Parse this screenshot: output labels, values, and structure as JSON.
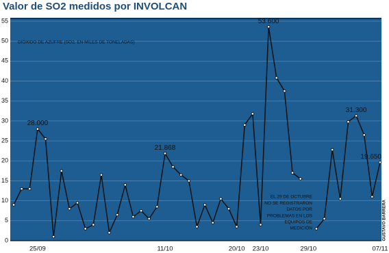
{
  "chart_data": {
    "type": "line",
    "title": "Valor de SO2 medidos por INVOLCAN",
    "subtitle": "DIÓXIDO DE AZUFRE (SO2, EN MILES DE TONELADAS)",
    "annotation": [
      "EL 29 DE OCTUBRE",
      "NO SE REGISTRARON",
      "DATOS POR",
      "PROBLEMAS EN LOS",
      "EQUIPOS DE",
      "MEDICIÓN"
    ],
    "credit": "GUSTAVO BARRERA",
    "categories": [
      null,
      null,
      null,
      "25/09",
      null,
      null,
      null,
      null,
      null,
      null,
      null,
      null,
      null,
      null,
      null,
      null,
      null,
      null,
      null,
      "11/10",
      null,
      null,
      null,
      null,
      null,
      null,
      null,
      null,
      "20/10",
      null,
      null,
      "23/10",
      null,
      null,
      null,
      null,
      null,
      "29/10",
      null,
      null,
      null,
      null,
      null,
      null,
      null,
      null,
      "07/11"
    ],
    "values": [
      9,
      13,
      13,
      28,
      25.5,
      1,
      17.5,
      8,
      9.5,
      3,
      4,
      16.5,
      2,
      6.5,
      14,
      6,
      7.5,
      5.5,
      8.5,
      21.868,
      18.5,
      16.5,
      15,
      3.5,
      9,
      4.5,
      10.5,
      8,
      3.5,
      29,
      31.8,
      4,
      53.6,
      40.8,
      37.5,
      17,
      15.5,
      null,
      3,
      5.5,
      22.8,
      10.5,
      29.8,
      31.3,
      26.5,
      11,
      19.65
    ],
    "value_labels": [
      null,
      null,
      null,
      "28.000",
      null,
      null,
      null,
      null,
      null,
      null,
      null,
      null,
      null,
      null,
      null,
      null,
      null,
      null,
      null,
      "21.868",
      null,
      null,
      null,
      null,
      null,
      null,
      null,
      null,
      null,
      null,
      null,
      null,
      "53.600",
      null,
      null,
      null,
      null,
      null,
      null,
      null,
      null,
      null,
      null,
      "31.300",
      null,
      null,
      "19.650"
    ],
    "color": "#111111",
    "ylim": [
      0,
      55
    ],
    "yticks": [
      0,
      5,
      10,
      15,
      20,
      25,
      30,
      35,
      40,
      45,
      50,
      55
    ],
    "grid": true
  }
}
